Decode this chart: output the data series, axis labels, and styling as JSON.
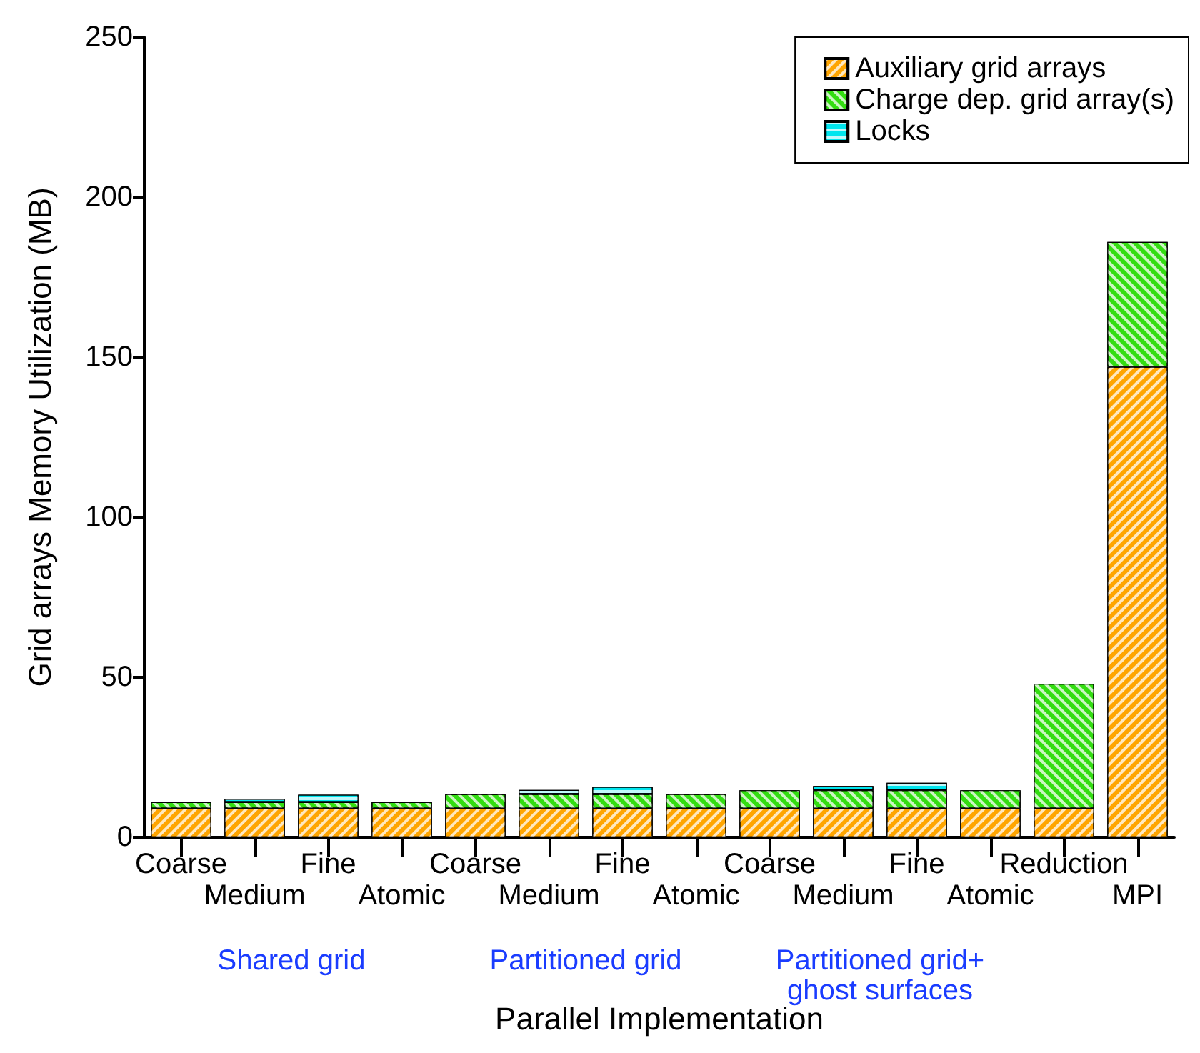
{
  "chart_data": {
    "type": "bar",
    "stacked": true,
    "xlabel": "Parallel Implementation",
    "ylabel": "Grid arrays Memory Utilization (MB)",
    "categories": [
      "Coarse",
      "Medium",
      "Fine",
      "Atomic",
      "Coarse",
      "Medium",
      "Fine",
      "Atomic",
      "Coarse",
      "Medium",
      "Fine",
      "Atomic",
      "Reduction",
      "MPI"
    ],
    "series": [
      {
        "name": "Auxiliary grid arrays",
        "color": "#ffa500",
        "values": [
          9,
          9,
          9,
          9,
          9,
          9,
          9,
          9,
          9,
          9,
          9,
          9,
          9,
          147
        ]
      },
      {
        "name": "Charge dep. grid array(s)",
        "color": "#33dd11",
        "values": [
          2,
          2,
          2,
          2,
          4.5,
          4.5,
          4.5,
          4.5,
          5.7,
          5.7,
          5.7,
          5.7,
          39,
          39
        ]
      },
      {
        "name": "Locks",
        "color": "#00e5ee",
        "values": [
          null,
          1,
          2.3,
          null,
          null,
          1.3,
          2.3,
          null,
          null,
          1.3,
          2.3,
          null,
          null,
          null
        ]
      }
    ],
    "ylim": [
      0,
      250
    ],
    "yticks": [
      0,
      50,
      100,
      150,
      200,
      250
    ],
    "grid": false,
    "legend": "top right",
    "annotations": [
      "Shared grid",
      "Partitioned grid",
      "Partitioned grid+\nghost surfaces"
    ]
  }
}
